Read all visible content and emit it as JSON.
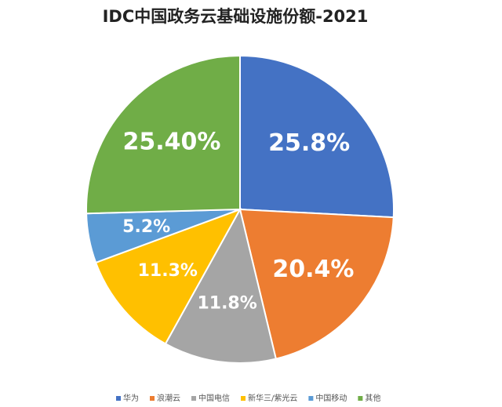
{
  "chart_data": {
    "type": "pie",
    "title": "IDC中国政务云基础设施份额-2021",
    "categories": [
      "华为",
      "浪潮云",
      "中国电信",
      "新华三/紫光云",
      "中国移动",
      "其他"
    ],
    "values": [
      25.8,
      20.4,
      11.8,
      11.3,
      5.2,
      25.4
    ],
    "value_labels": [
      "25.8%",
      "20.4%",
      "11.8%",
      "11.3%",
      "5.2%",
      "25.40%"
    ],
    "colors": [
      "#4472c4",
      "#ed7d31",
      "#a5a5a5",
      "#ffc000",
      "#5b9bd5",
      "#70ad47"
    ],
    "legend": "bottom"
  }
}
